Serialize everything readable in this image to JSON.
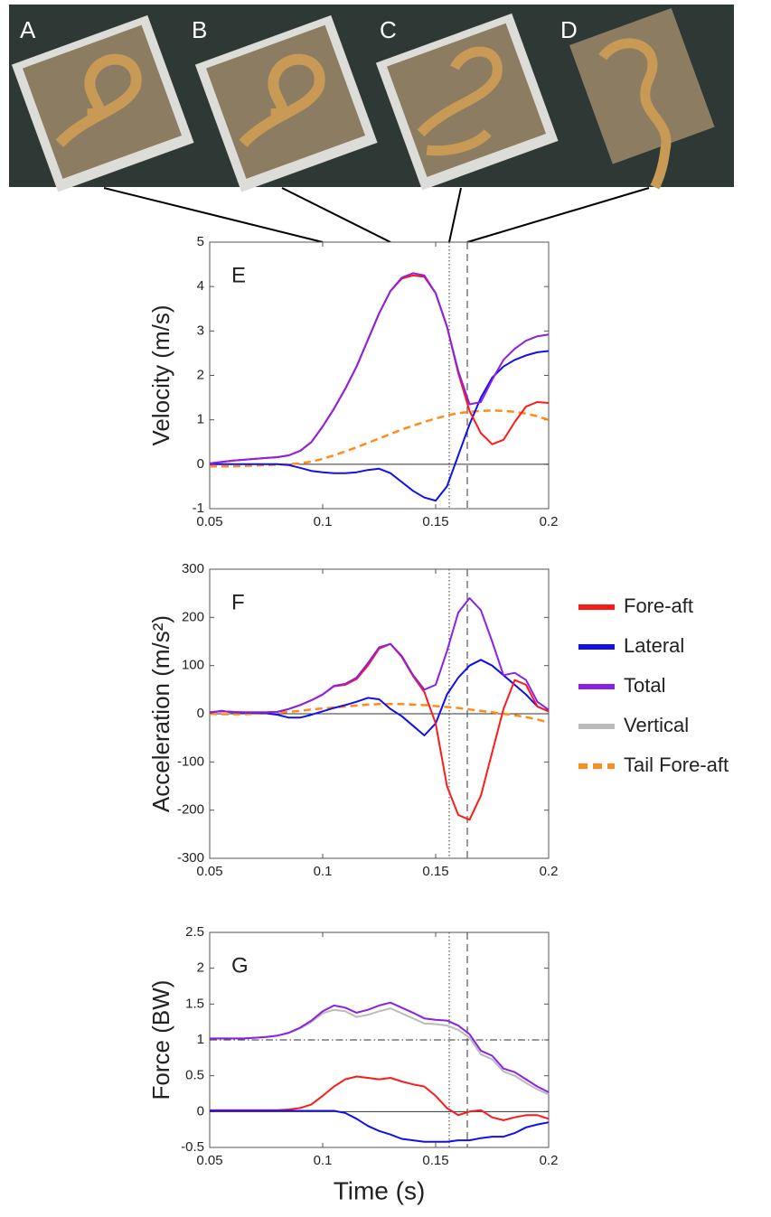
{
  "photos": {
    "labels": [
      "A",
      "B",
      "C",
      "D"
    ]
  },
  "legend": [
    {
      "name": "Fore-aft",
      "color": "#ff1a1a",
      "style": "solid"
    },
    {
      "name": "Lateral",
      "color": "#1010ee",
      "style": "solid"
    },
    {
      "name": "Total",
      "color": "#8a22e6",
      "style": "solid"
    },
    {
      "name": "Vertical",
      "color": "#bbbbbb",
      "style": "solid"
    },
    {
      "name": "Tail Fore-aft",
      "color": "#ff8c1a",
      "style": "dashed"
    }
  ],
  "chart_data": [
    {
      "type": "line",
      "panel_label": "E",
      "ylabel": "Velocity (m/s)",
      "x": [
        0.05,
        0.055,
        0.06,
        0.065,
        0.07,
        0.075,
        0.08,
        0.085,
        0.09,
        0.095,
        0.1,
        0.105,
        0.11,
        0.115,
        0.12,
        0.125,
        0.13,
        0.135,
        0.14,
        0.145,
        0.15,
        0.155,
        0.16,
        0.165,
        0.17,
        0.175,
        0.18,
        0.185,
        0.19,
        0.195,
        0.2
      ],
      "xlim": [
        0.05,
        0.2
      ],
      "xticks": [
        0.05,
        0.1,
        0.15,
        0.2
      ],
      "ylim": [
        -1,
        5
      ],
      "yticks": [
        -1,
        0,
        1,
        2,
        3,
        4,
        5
      ],
      "hlines": [
        {
          "y": 0,
          "style": "solid"
        }
      ],
      "vlines": [
        {
          "x": 0.156,
          "style": "dotted"
        },
        {
          "x": 0.164,
          "style": "dashed"
        }
      ],
      "series": [
        {
          "color": "#ff8c1a",
          "style": "dashed",
          "values": [
            -0.05,
            -0.05,
            -0.05,
            -0.04,
            -0.03,
            -0.02,
            -0.01,
            0,
            0.02,
            0.06,
            0.12,
            0.2,
            0.29,
            0.38,
            0.48,
            0.58,
            0.68,
            0.78,
            0.87,
            0.95,
            1.03,
            1.1,
            1.15,
            1.18,
            1.2,
            1.21,
            1.2,
            1.18,
            1.14,
            1.08,
            1.0
          ]
        },
        {
          "color": "#1010ee",
          "style": "solid",
          "values": [
            0,
            0,
            0,
            0,
            0,
            0,
            0,
            -0.02,
            -0.08,
            -0.15,
            -0.18,
            -0.2,
            -0.2,
            -0.18,
            -0.13,
            -0.1,
            -0.2,
            -0.4,
            -0.6,
            -0.75,
            -0.82,
            -0.5,
            0.2,
            0.9,
            1.5,
            1.95,
            2.2,
            2.35,
            2.45,
            2.52,
            2.55
          ]
        },
        {
          "color": "#ff1a1a",
          "style": "solid",
          "values": [
            0.02,
            0.05,
            0.08,
            0.1,
            0.12,
            0.14,
            0.16,
            0.2,
            0.3,
            0.5,
            0.85,
            1.25,
            1.7,
            2.2,
            2.8,
            3.4,
            3.9,
            4.18,
            4.25,
            4.22,
            3.85,
            3.1,
            2.05,
            1.2,
            0.7,
            0.45,
            0.55,
            0.95,
            1.3,
            1.4,
            1.38
          ]
        },
        {
          "color": "#8a22e6",
          "style": "solid",
          "values": [
            0.02,
            0.05,
            0.08,
            0.1,
            0.12,
            0.14,
            0.16,
            0.2,
            0.3,
            0.5,
            0.85,
            1.25,
            1.7,
            2.2,
            2.8,
            3.4,
            3.9,
            4.2,
            4.3,
            4.25,
            3.85,
            3.1,
            2.1,
            1.35,
            1.4,
            1.9,
            2.35,
            2.6,
            2.78,
            2.88,
            2.92
          ]
        }
      ]
    },
    {
      "type": "line",
      "panel_label": "F",
      "ylabel": "Acceleration (m/s²)",
      "x": [
        0.05,
        0.055,
        0.06,
        0.065,
        0.07,
        0.075,
        0.08,
        0.085,
        0.09,
        0.095,
        0.1,
        0.105,
        0.11,
        0.115,
        0.12,
        0.125,
        0.13,
        0.135,
        0.14,
        0.145,
        0.15,
        0.155,
        0.16,
        0.165,
        0.17,
        0.175,
        0.18,
        0.185,
        0.19,
        0.195,
        0.2
      ],
      "xlim": [
        0.05,
        0.2
      ],
      "xticks": [
        0.05,
        0.1,
        0.15,
        0.2
      ],
      "ylim": [
        -300,
        300
      ],
      "yticks": [
        -300,
        -200,
        -100,
        0,
        100,
        200,
        300
      ],
      "hlines": [
        {
          "y": 0,
          "style": "solid"
        }
      ],
      "vlines": [
        {
          "x": 0.156,
          "style": "dotted"
        },
        {
          "x": 0.164,
          "style": "dashed"
        }
      ],
      "series": [
        {
          "color": "#ff8c1a",
          "style": "dashed",
          "values": [
            0,
            -1,
            -1,
            -1,
            0,
            1,
            2,
            4,
            6,
            9,
            11,
            13,
            15,
            17,
            19,
            20,
            20,
            20,
            19,
            18,
            16,
            14,
            12,
            9,
            6,
            3,
            0,
            -3,
            -7,
            -12,
            -18
          ]
        },
        {
          "color": "#1010ee",
          "style": "solid",
          "values": [
            2,
            6,
            3,
            2,
            2,
            1,
            -2,
            -8,
            -8,
            -2,
            5,
            12,
            18,
            25,
            33,
            30,
            10,
            -5,
            -25,
            -45,
            -20,
            40,
            75,
            100,
            112,
            100,
            80,
            60,
            40,
            15,
            5
          ]
        },
        {
          "color": "#ff1a1a",
          "style": "solid",
          "values": [
            3,
            5,
            4,
            3,
            3,
            3,
            4,
            10,
            18,
            28,
            40,
            57,
            60,
            72,
            100,
            135,
            145,
            118,
            78,
            45,
            -20,
            -150,
            -210,
            -220,
            -170,
            -80,
            10,
            70,
            60,
            15,
            5
          ]
        },
        {
          "color": "#8a22e6",
          "style": "solid",
          "values": [
            3,
            5,
            4,
            3,
            3,
            3,
            4,
            10,
            18,
            28,
            40,
            58,
            62,
            75,
            105,
            138,
            145,
            120,
            80,
            50,
            60,
            130,
            210,
            240,
            215,
            150,
            80,
            85,
            70,
            25,
            8
          ]
        }
      ]
    },
    {
      "type": "line",
      "panel_label": "G",
      "ylabel": "Force (BW)",
      "xlabel": "Time (s)",
      "x": [
        0.05,
        0.055,
        0.06,
        0.065,
        0.07,
        0.075,
        0.08,
        0.085,
        0.09,
        0.095,
        0.1,
        0.105,
        0.11,
        0.115,
        0.12,
        0.125,
        0.13,
        0.135,
        0.14,
        0.145,
        0.15,
        0.155,
        0.16,
        0.165,
        0.17,
        0.175,
        0.18,
        0.185,
        0.19,
        0.195,
        0.2
      ],
      "xlim": [
        0.05,
        0.2
      ],
      "xticks": [
        0.05,
        0.1,
        0.15,
        0.2
      ],
      "ylim": [
        -0.5,
        2.5
      ],
      "yticks": [
        -0.5,
        0,
        0.5,
        1,
        1.5,
        2,
        2.5
      ],
      "hlines": [
        {
          "y": 0,
          "style": "solid"
        },
        {
          "y": 1,
          "style": "dashdot"
        }
      ],
      "vlines": [
        {
          "x": 0.156,
          "style": "dotted"
        },
        {
          "x": 0.164,
          "style": "dashed"
        }
      ],
      "series": [
        {
          "color": "#bbbbbb",
          "style": "solid",
          "values": [
            1.02,
            1.02,
            1.02,
            1.02,
            1.03,
            1.04,
            1.06,
            1.1,
            1.16,
            1.25,
            1.37,
            1.42,
            1.4,
            1.32,
            1.35,
            1.4,
            1.44,
            1.37,
            1.3,
            1.23,
            1.22,
            1.2,
            1.14,
            1.03,
            0.8,
            0.73,
            0.56,
            0.5,
            0.4,
            0.31,
            0.24
          ]
        },
        {
          "color": "#8a22e6",
          "style": "solid",
          "values": [
            1.02,
            1.02,
            1.02,
            1.02,
            1.03,
            1.04,
            1.06,
            1.1,
            1.17,
            1.27,
            1.4,
            1.48,
            1.45,
            1.38,
            1.42,
            1.48,
            1.52,
            1.45,
            1.38,
            1.3,
            1.28,
            1.27,
            1.2,
            1.08,
            0.85,
            0.78,
            0.6,
            0.55,
            0.45,
            0.35,
            0.27
          ]
        },
        {
          "color": "#ff1a1a",
          "style": "solid",
          "values": [
            0.02,
            0.02,
            0.02,
            0.02,
            0.02,
            0.02,
            0.02,
            0.03,
            0.05,
            0.1,
            0.22,
            0.35,
            0.45,
            0.49,
            0.47,
            0.45,
            0.47,
            0.42,
            0.38,
            0.35,
            0.22,
            0.05,
            -0.05,
            0.0,
            0.02,
            -0.08,
            -0.12,
            -0.08,
            -0.05,
            -0.05,
            -0.1
          ]
        },
        {
          "color": "#1010ee",
          "style": "solid",
          "values": [
            0.01,
            0.01,
            0.01,
            0.01,
            0.01,
            0.01,
            0.01,
            0.01,
            0.01,
            0.01,
            0.01,
            0.01,
            -0.02,
            -0.1,
            -0.2,
            -0.27,
            -0.32,
            -0.38,
            -0.4,
            -0.42,
            -0.42,
            -0.42,
            -0.4,
            -0.4,
            -0.37,
            -0.35,
            -0.35,
            -0.3,
            -0.22,
            -0.18,
            -0.15
          ]
        }
      ]
    }
  ]
}
